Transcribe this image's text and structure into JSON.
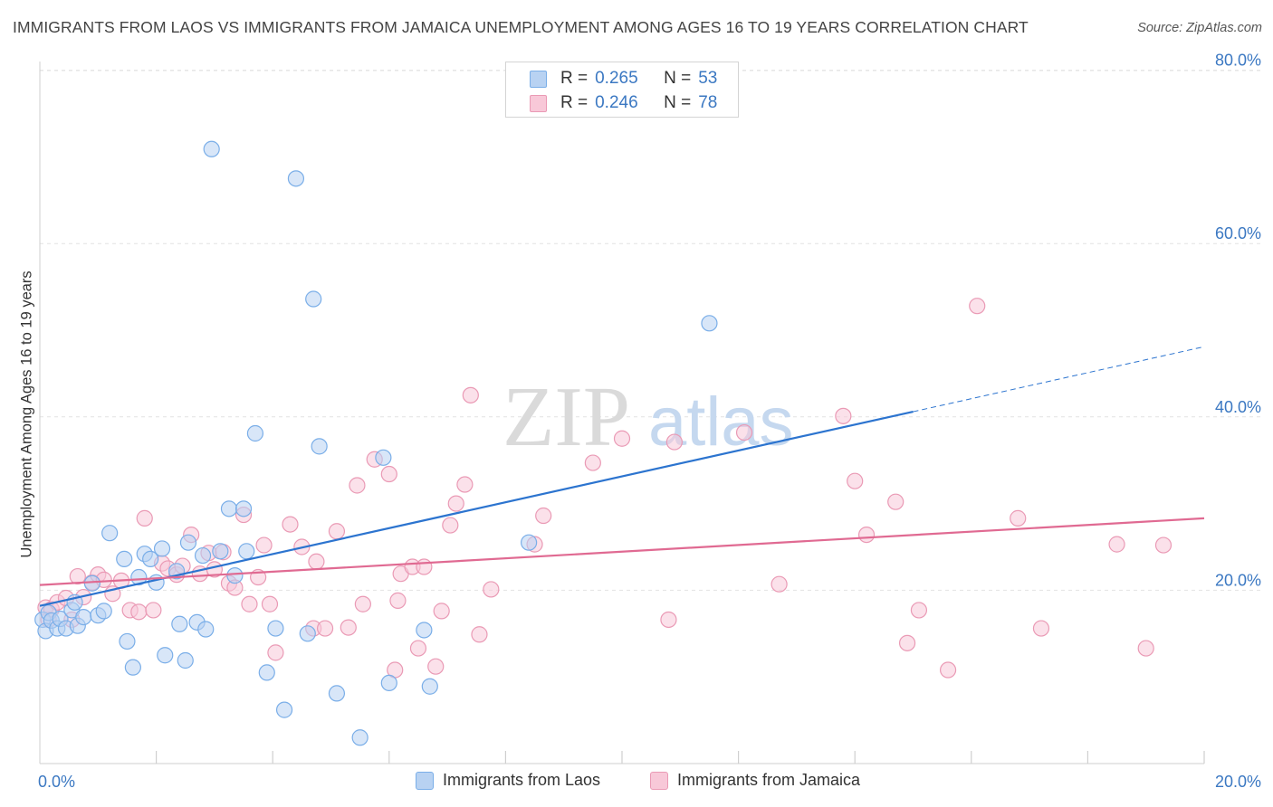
{
  "title": "IMMIGRANTS FROM LAOS VS IMMIGRANTS FROM JAMAICA UNEMPLOYMENT AMONG AGES 16 TO 19 YEARS CORRELATION CHART",
  "source": "Source: ZipAtlas.com",
  "watermark": {
    "zip": "ZIP",
    "atlas": "atlas"
  },
  "legend": {
    "r_label": "R =",
    "n_label": "N =",
    "series1": {
      "r": "0.265",
      "n": "53"
    },
    "series2": {
      "r": "0.246",
      "n": "78"
    }
  },
  "chart_data": {
    "type": "scatter",
    "title": "IMMIGRANTS FROM LAOS VS IMMIGRANTS FROM JAMAICA UNEMPLOYMENT AMONG AGES 16 TO 19 YEARS CORRELATION CHART",
    "xlabel": "",
    "ylabel": "Unemployment Among Ages 16 to 19 years",
    "xlim": [
      0,
      20
    ],
    "ylim": [
      0,
      80
    ],
    "x_tick_labels": [
      "0.0%",
      "20.0%"
    ],
    "y_ticks": [
      20,
      40,
      60,
      80
    ],
    "y_tick_labels": [
      "20.0%",
      "40.0%",
      "60.0%",
      "80.0%"
    ],
    "grid": true,
    "series": [
      {
        "name": "Immigrants from Laos",
        "color": "#7aaee8",
        "fill": "#b8d2f2",
        "trend": {
          "x": [
            0,
            15
          ],
          "y": [
            18.2,
            40.6
          ],
          "dashed_to": [
            20,
            48.1
          ]
        },
        "points": [
          [
            0.05,
            16.6
          ],
          [
            0.1,
            15.3
          ],
          [
            0.15,
            17.4
          ],
          [
            0.2,
            16.5
          ],
          [
            0.3,
            15.6
          ],
          [
            0.35,
            16.7
          ],
          [
            0.45,
            15.6
          ],
          [
            0.55,
            17.7
          ],
          [
            0.6,
            18.6
          ],
          [
            0.65,
            15.9
          ],
          [
            0.75,
            16.9
          ],
          [
            0.9,
            20.8
          ],
          [
            1.0,
            17.1
          ],
          [
            1.1,
            17.6
          ],
          [
            1.2,
            26.6
          ],
          [
            1.45,
            23.6
          ],
          [
            1.5,
            14.1
          ],
          [
            1.6,
            11.1
          ],
          [
            1.7,
            21.5
          ],
          [
            1.8,
            24.2
          ],
          [
            1.9,
            23.6
          ],
          [
            2.0,
            20.9
          ],
          [
            2.1,
            24.8
          ],
          [
            2.15,
            12.5
          ],
          [
            2.35,
            22.2
          ],
          [
            2.4,
            16.1
          ],
          [
            2.5,
            11.9
          ],
          [
            2.55,
            25.5
          ],
          [
            2.7,
            16.3
          ],
          [
            2.8,
            24.0
          ],
          [
            2.85,
            15.5
          ],
          [
            2.95,
            70.9
          ],
          [
            3.1,
            24.5
          ],
          [
            3.35,
            21.7
          ],
          [
            3.25,
            29.4
          ],
          [
            3.5,
            29.4
          ],
          [
            3.55,
            24.5
          ],
          [
            3.7,
            38.1
          ],
          [
            3.9,
            10.5
          ],
          [
            4.05,
            15.6
          ],
          [
            4.2,
            6.2
          ],
          [
            4.4,
            67.5
          ],
          [
            4.6,
            15.0
          ],
          [
            4.7,
            53.6
          ],
          [
            4.8,
            36.6
          ],
          [
            5.1,
            8.1
          ],
          [
            5.5,
            3.0
          ],
          [
            5.9,
            35.3
          ],
          [
            6.0,
            9.3
          ],
          [
            6.6,
            15.4
          ],
          [
            6.7,
            8.9
          ],
          [
            8.4,
            25.5
          ],
          [
            11.5,
            50.8
          ]
        ]
      },
      {
        "name": "Immigrants from Jamaica",
        "color": "#ea9ab5",
        "fill": "#f8c8d8",
        "trend": {
          "x": [
            0,
            20
          ],
          "y": [
            20.6,
            28.3
          ]
        },
        "points": [
          [
            0.1,
            18.0
          ],
          [
            0.15,
            16.6
          ],
          [
            0.2,
            17.8
          ],
          [
            0.3,
            18.6
          ],
          [
            0.45,
            19.1
          ],
          [
            0.55,
            16.6
          ],
          [
            0.65,
            21.6
          ],
          [
            0.75,
            19.2
          ],
          [
            0.9,
            20.9
          ],
          [
            1.0,
            21.8
          ],
          [
            1.1,
            21.2
          ],
          [
            1.25,
            19.6
          ],
          [
            1.4,
            21.1
          ],
          [
            1.55,
            17.7
          ],
          [
            1.7,
            17.5
          ],
          [
            1.8,
            28.3
          ],
          [
            1.95,
            17.7
          ],
          [
            2.1,
            23.1
          ],
          [
            2.2,
            22.5
          ],
          [
            2.35,
            21.8
          ],
          [
            2.45,
            22.8
          ],
          [
            2.6,
            26.4
          ],
          [
            2.75,
            21.9
          ],
          [
            2.9,
            24.3
          ],
          [
            3.0,
            22.4
          ],
          [
            3.15,
            24.4
          ],
          [
            3.25,
            20.8
          ],
          [
            3.35,
            20.3
          ],
          [
            3.5,
            28.7
          ],
          [
            3.6,
            18.4
          ],
          [
            3.75,
            21.5
          ],
          [
            3.85,
            25.2
          ],
          [
            3.95,
            18.4
          ],
          [
            4.05,
            12.8
          ],
          [
            4.3,
            27.6
          ],
          [
            4.5,
            25.0
          ],
          [
            4.7,
            15.6
          ],
          [
            4.75,
            23.3
          ],
          [
            4.9,
            15.6
          ],
          [
            5.1,
            26.8
          ],
          [
            5.3,
            15.7
          ],
          [
            5.45,
            32.1
          ],
          [
            5.55,
            18.4
          ],
          [
            5.75,
            35.1
          ],
          [
            6.0,
            33.4
          ],
          [
            6.1,
            10.8
          ],
          [
            6.15,
            18.8
          ],
          [
            6.2,
            21.9
          ],
          [
            6.4,
            22.7
          ],
          [
            6.5,
            13.3
          ],
          [
            6.6,
            22.7
          ],
          [
            6.8,
            11.2
          ],
          [
            6.9,
            17.6
          ],
          [
            7.05,
            27.5
          ],
          [
            7.15,
            30.0
          ],
          [
            7.3,
            32.2
          ],
          [
            7.4,
            42.5
          ],
          [
            7.55,
            14.9
          ],
          [
            7.75,
            20.1
          ],
          [
            8.5,
            25.3
          ],
          [
            8.65,
            28.6
          ],
          [
            9.5,
            34.7
          ],
          [
            10.0,
            37.5
          ],
          [
            10.8,
            16.6
          ],
          [
            10.9,
            37.1
          ],
          [
            12.1,
            38.2
          ],
          [
            12.7,
            20.7
          ],
          [
            13.8,
            40.1
          ],
          [
            14.0,
            32.6
          ],
          [
            14.2,
            26.4
          ],
          [
            14.7,
            30.2
          ],
          [
            14.9,
            13.9
          ],
          [
            15.1,
            17.7
          ],
          [
            15.6,
            10.8
          ],
          [
            16.1,
            52.8
          ],
          [
            16.8,
            28.3
          ],
          [
            17.2,
            15.6
          ],
          [
            18.5,
            25.3
          ],
          [
            19.0,
            13.3
          ],
          [
            19.3,
            25.2
          ]
        ]
      }
    ]
  }
}
